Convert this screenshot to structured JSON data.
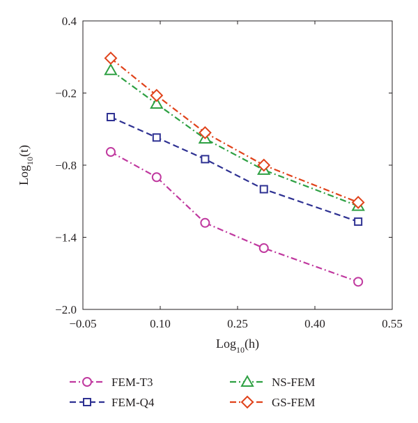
{
  "chart_data": {
    "type": "line",
    "xlabel": "Log10(h)",
    "ylabel": "Log10(t)",
    "xlabel_parts": {
      "base": "Log",
      "sub": "10",
      "arg": "(h)"
    },
    "ylabel_parts": {
      "base": "Log",
      "sub": "10",
      "arg": "(t)"
    },
    "xlim": [
      -0.05,
      0.55
    ],
    "ylim": [
      -2.0,
      0.4
    ],
    "xticks": [
      -0.05,
      0.1,
      0.25,
      0.4,
      0.55
    ],
    "xtick_labels": [
      "−0.05",
      "0.10",
      "0.25",
      "0.40",
      "0.55"
    ],
    "yticks": [
      -2.0,
      -1.4,
      -0.8,
      -0.2,
      0.4
    ],
    "ytick_labels": [
      "−2.0",
      "−1.4",
      "−0.8",
      "−0.2",
      "0.4"
    ],
    "grid": false,
    "legend_position": "bottom",
    "series": [
      {
        "name": "FEM-T3",
        "color": "#c0399f",
        "dash": "dashdot",
        "marker": "circle",
        "x": [
          0.004,
          0.093,
          0.187,
          0.301,
          0.484
        ],
        "y": [
          -0.69,
          -0.9,
          -1.28,
          -1.49,
          -1.77
        ]
      },
      {
        "name": "FEM-Q4",
        "color": "#2e3192",
        "dash": "dashed",
        "marker": "square",
        "x": [
          0.004,
          0.093,
          0.187,
          0.301,
          0.484
        ],
        "y": [
          -0.4,
          -0.57,
          -0.75,
          -1.0,
          -1.27
        ]
      },
      {
        "name": "NS-FEM",
        "color": "#2ea043",
        "dash": "dashdot",
        "marker": "triangle",
        "x": [
          0.004,
          0.093,
          0.187,
          0.301,
          0.484
        ],
        "y": [
          -0.01,
          -0.29,
          -0.58,
          -0.84,
          -1.14
        ]
      },
      {
        "name": "GS-FEM",
        "color": "#e0421a",
        "dash": "dashdot",
        "marker": "diamond",
        "x": [
          0.004,
          0.093,
          0.187,
          0.301,
          0.484
        ],
        "y": [
          0.09,
          -0.22,
          -0.53,
          -0.8,
          -1.11
        ]
      }
    ]
  }
}
